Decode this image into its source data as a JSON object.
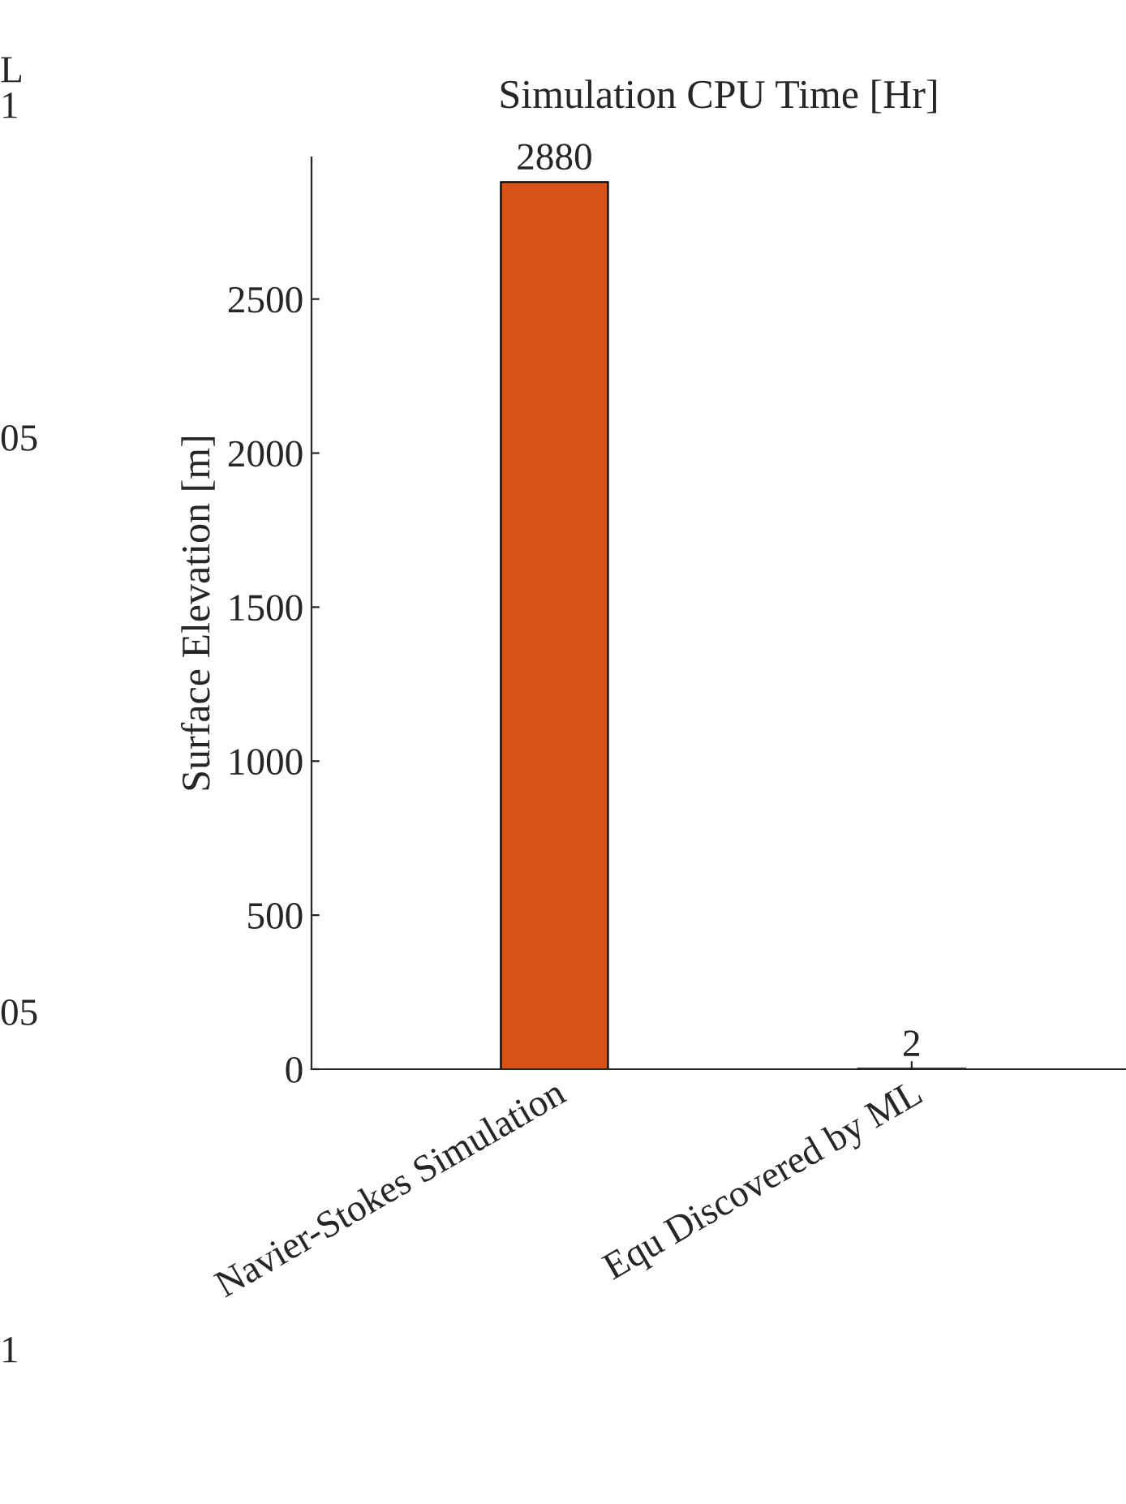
{
  "chart_data": {
    "type": "bar",
    "title": "Simulation CPU Time [Hr]",
    "ylabel": "Surface Elevation [m]",
    "categories": [
      "Navier-Stokes Simulation",
      "Equ Discovered by ML"
    ],
    "values": [
      2880,
      2
    ],
    "color": "#d95319",
    "data_labels": true,
    "ylim": [
      0,
      2960
    ],
    "yticks": [
      0,
      500,
      1000,
      1500,
      2000,
      2500
    ],
    "grid": false,
    "annotations": [
      "L",
      "1",
      "05",
      "05",
      "1"
    ]
  }
}
